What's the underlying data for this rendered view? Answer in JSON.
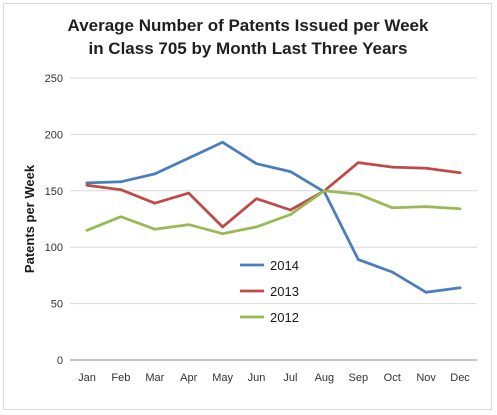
{
  "chart_data": {
    "type": "line",
    "title": [
      "Average Number of Patents Issued per Week",
      "in Class 705 by Month Last Three Years"
    ],
    "xlabel": "",
    "ylabel": "Patents per Week",
    "categories": [
      "Jan",
      "Feb",
      "Mar",
      "Apr",
      "May",
      "Jun",
      "Jul",
      "Aug",
      "Sep",
      "Oct",
      "Nov",
      "Dec"
    ],
    "ylim": [
      0,
      250
    ],
    "yticks": [
      0,
      50,
      100,
      150,
      200,
      250
    ],
    "grid": true,
    "legend_position": "center",
    "series": [
      {
        "name": "2014",
        "color": "#4a7ebb",
        "values": [
          157,
          158,
          165,
          179,
          193,
          174,
          167,
          149,
          89,
          78,
          60,
          64
        ]
      },
      {
        "name": "2013",
        "color": "#be4b48",
        "values": [
          155,
          151,
          139,
          148,
          118,
          143,
          133,
          150,
          175,
          171,
          170,
          166
        ]
      },
      {
        "name": "2012",
        "color": "#98b954",
        "values": [
          115,
          127,
          116,
          120,
          112,
          118,
          129,
          150,
          147,
          135,
          136,
          134
        ]
      }
    ]
  }
}
